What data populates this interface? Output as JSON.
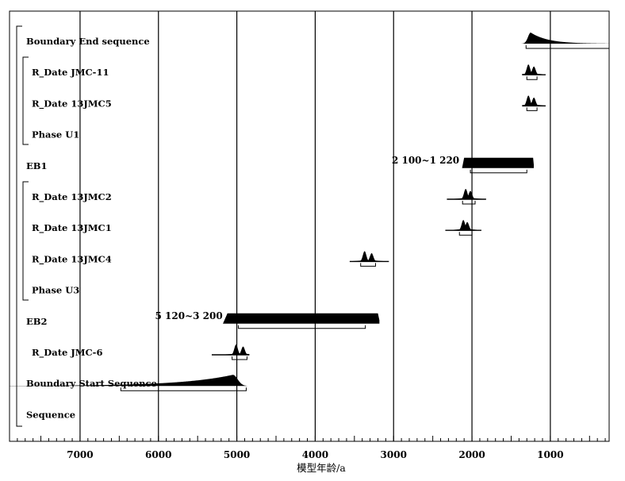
{
  "chart_data": {
    "type": "area",
    "xlabel": "模型年龄/a",
    "xlim": [
      7900,
      250
    ],
    "xticks": [
      7000,
      6000,
      5000,
      4000,
      3000,
      2000,
      1000
    ],
    "grid": true,
    "rows": [
      {
        "label": "Boundary End sequence",
        "kind": "boundary_end",
        "peak": 1250,
        "range": [
          1370,
          250
        ],
        "ci": [
          1310,
          250
        ]
      },
      {
        "label": "R_Date JMC-11",
        "kind": "date",
        "peaks": [
          1280,
          1210
        ],
        "range": [
          1360,
          1060
        ],
        "ci": [
          1300,
          1170
        ]
      },
      {
        "label": "R_Date 13JMC5",
        "kind": "date",
        "peaks": [
          1280,
          1210
        ],
        "range": [
          1360,
          1060
        ],
        "ci": [
          1300,
          1170
        ]
      },
      {
        "label": "Phase U1",
        "kind": "phase"
      },
      {
        "label": "EB1",
        "kind": "uniform",
        "range": [
          2100,
          1220
        ],
        "ci": [
          2020,
          1300
        ]
      },
      {
        "label": "R_Date 13JMC2",
        "kind": "date",
        "peaks": [
          2080,
          2020
        ],
        "range": [
          2320,
          1820
        ],
        "ci": [
          2120,
          1960
        ]
      },
      {
        "label": "R_Date 13JMC1",
        "kind": "date",
        "peaks": [
          2110,
          2060
        ],
        "range": [
          2340,
          1880
        ],
        "ci": [
          2160,
          2000
        ]
      },
      {
        "label": "R_Date 13JMC4",
        "kind": "date",
        "peaks": [
          3370,
          3280
        ],
        "range": [
          3560,
          3060
        ],
        "ci": [
          3420,
          3230
        ]
      },
      {
        "label": "Phase U3",
        "kind": "phase"
      },
      {
        "label": "EB2",
        "kind": "uniform",
        "range": [
          5120,
          3200
        ],
        "ci": [
          4980,
          3360
        ]
      },
      {
        "label": "R_Date JMC-6",
        "kind": "date",
        "peaks": [
          5010,
          4920
        ],
        "range": [
          5320,
          4840
        ],
        "ci": [
          5060,
          4870
        ]
      },
      {
        "label": "Boundary Start Sequence",
        "kind": "boundary_start",
        "peak": 5050,
        "range": [
          7900,
          4870
        ],
        "ci": [
          6480,
          4880
        ]
      },
      {
        "label": "Sequence",
        "kind": "sequence"
      }
    ],
    "annotations": [
      {
        "row": "EB1",
        "text": "2 100~1 220"
      },
      {
        "row": "EB2",
        "text": "5 120~3 200"
      }
    ]
  }
}
